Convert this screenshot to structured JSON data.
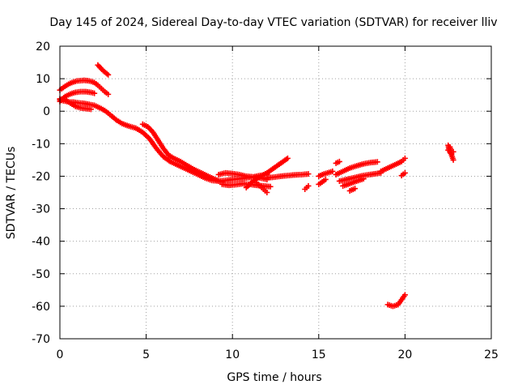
{
  "chart_data": {
    "type": "scatter",
    "title": "Day 145 of 2024, Sidereal Day-to-day VTEC variation (SDTVAR) for receiver lliv",
    "xlabel": "GPS time / hours",
    "ylabel": "SDTVAR / TECUs",
    "xlim": [
      0,
      25
    ],
    "ylim": [
      -70,
      20
    ],
    "xticks": [
      0,
      5,
      10,
      15,
      20,
      25
    ],
    "yticks": [
      20,
      10,
      0,
      -10,
      -20,
      -30,
      -40,
      -50,
      -60,
      -70
    ],
    "grid": true,
    "marker": "+",
    "color": "#ff0000",
    "series": [
      {
        "x": [
          0.0,
          0.2,
          0.4,
          0.6,
          0.8,
          1.0,
          1.2,
          1.4,
          1.6,
          1.8,
          2.0,
          2.2,
          2.4,
          2.6,
          2.8
        ],
        "y": [
          6.5,
          7.3,
          8.0,
          8.6,
          9.0,
          9.3,
          9.4,
          9.5,
          9.4,
          9.2,
          8.8,
          8.0,
          7.0,
          6.0,
          5.2
        ]
      },
      {
        "x": [
          0.0,
          0.3,
          0.6,
          0.9,
          1.2,
          1.5,
          1.8,
          2.0
        ],
        "y": [
          3.0,
          4.5,
          5.3,
          5.8,
          6.0,
          6.0,
          5.8,
          5.5
        ]
      },
      {
        "x": [
          0.0,
          0.2,
          0.4,
          0.6,
          0.8,
          1.0,
          1.2,
          1.4,
          1.6,
          1.8,
          2.0,
          2.2,
          2.4,
          2.6,
          2.8,
          3.0,
          3.3,
          3.6,
          4.0,
          4.4,
          4.8,
          5.2,
          5.6,
          6.0,
          6.4,
          6.8,
          7.2,
          7.6,
          8.0,
          8.4,
          8.8,
          9.2,
          9.6,
          10.0,
          10.4,
          10.8,
          11.2,
          11.6,
          12.0
        ],
        "y": [
          3.5,
          3.2,
          3.0,
          2.8,
          2.8,
          2.6,
          2.5,
          2.4,
          2.2,
          2.0,
          1.8,
          1.3,
          0.8,
          0.2,
          -0.6,
          -1.5,
          -2.8,
          -3.8,
          -4.6,
          -5.2,
          -6.5,
          -8.5,
          -11.5,
          -14.0,
          -15.5,
          -16.5,
          -17.5,
          -18.5,
          -19.5,
          -20.5,
          -21.3,
          -21.5,
          -21.3,
          -21.0,
          -20.8,
          -20.5,
          -20.3,
          -20.5,
          -21.0
        ]
      },
      {
        "x": [
          0.0,
          0.3,
          0.6,
          0.9,
          1.2,
          1.5,
          1.8
        ],
        "y": [
          3.8,
          3.5,
          2.5,
          1.5,
          1.0,
          0.8,
          0.6
        ]
      },
      {
        "x": [
          2.2,
          2.5,
          2.8
        ],
        "y": [
          14.2,
          12.5,
          11.2
        ]
      },
      {
        "x": [
          4.8,
          5.1,
          5.4,
          5.7,
          6.0,
          6.3,
          6.6,
          7.0,
          7.4,
          7.8,
          8.2,
          8.6,
          9.0,
          9.4
        ],
        "y": [
          -4.0,
          -4.8,
          -6.5,
          -9.0,
          -11.5,
          -13.5,
          -14.5,
          -15.5,
          -16.8,
          -18.0,
          -19.0,
          -20.0,
          -21.0,
          -21.8
        ]
      },
      {
        "x": [
          9.2,
          9.6,
          10.0,
          10.4,
          10.8,
          11.2,
          11.6,
          12.0
        ],
        "y": [
          -19.5,
          -19.0,
          -19.2,
          -19.5,
          -20.0,
          -20.2,
          -19.8,
          -19.5
        ]
      },
      {
        "x": [
          9.4,
          9.8,
          10.2,
          10.6,
          11.0,
          11.4,
          11.8,
          12.2
        ],
        "y": [
          -22.5,
          -22.8,
          -22.6,
          -22.3,
          -22.5,
          -22.8,
          -23.0,
          -23.2
        ]
      },
      {
        "x": [
          10.8,
          11.2,
          11.6,
          12.0,
          12.4,
          12.8,
          13.2
        ],
        "y": [
          -23.5,
          -21.5,
          -20.0,
          -19.0,
          -17.5,
          -16.0,
          -14.5
        ]
      },
      {
        "x": [
          11.4,
          11.6,
          11.8,
          12.0
        ],
        "y": [
          -22.0,
          -23.0,
          -24.0,
          -25.0
        ]
      },
      {
        "x": [
          12.0,
          12.4,
          12.8,
          13.2,
          13.6,
          14.0,
          14.4
        ],
        "y": [
          -20.5,
          -20.3,
          -20.0,
          -19.8,
          -19.6,
          -19.5,
          -19.3
        ]
      },
      {
        "x": [
          14.2,
          14.4
        ],
        "y": [
          -24.0,
          -23.0
        ]
      },
      {
        "x": [
          15.0,
          15.2,
          15.5,
          15.8
        ],
        "y": [
          -20.0,
          -19.5,
          -19.0,
          -18.5
        ]
      },
      {
        "x": [
          15.0,
          15.2,
          15.4
        ],
        "y": [
          -22.5,
          -21.8,
          -21.0
        ]
      },
      {
        "x": [
          16.0,
          16.4,
          16.8,
          17.2,
          17.6,
          18.0,
          18.4
        ],
        "y": [
          -19.5,
          -18.5,
          -17.5,
          -16.8,
          -16.2,
          -15.8,
          -15.6
        ]
      },
      {
        "x": [
          16.2,
          16.6,
          17.0,
          17.4,
          17.8,
          18.2,
          18.6
        ],
        "y": [
          -21.5,
          -21.0,
          -20.5,
          -20.0,
          -19.6,
          -19.3,
          -19.0
        ]
      },
      {
        "x": [
          16.4,
          16.8,
          17.2,
          17.6
        ],
        "y": [
          -23.0,
          -22.3,
          -21.5,
          -20.8
        ]
      },
      {
        "x": [
          16.8,
          17.1
        ],
        "y": [
          -24.5,
          -23.8
        ]
      },
      {
        "x": [
          16.0,
          16.2
        ],
        "y": [
          -16.0,
          -15.5
        ]
      },
      {
        "x": [
          18.6,
          19.0,
          19.4,
          19.8,
          20.0
        ],
        "y": [
          -18.5,
          -17.5,
          -16.5,
          -15.5,
          -14.5
        ]
      },
      {
        "x": [
          19.8,
          20.0
        ],
        "y": [
          -19.8,
          -19.0
        ]
      },
      {
        "x": [
          19.0,
          19.3,
          19.6,
          19.8,
          20.0
        ],
        "y": [
          -59.5,
          -60.0,
          -59.5,
          -58.0,
          -56.5
        ]
      },
      {
        "x": [
          22.5,
          22.6,
          22.7,
          22.8
        ],
        "y": [
          -10.5,
          -12.5,
          -13.5,
          -15.0
        ]
      },
      {
        "x": [
          22.5,
          22.6,
          22.7,
          22.8
        ],
        "y": [
          -12.0,
          -11.0,
          -13.0,
          -12.5
        ]
      }
    ]
  }
}
